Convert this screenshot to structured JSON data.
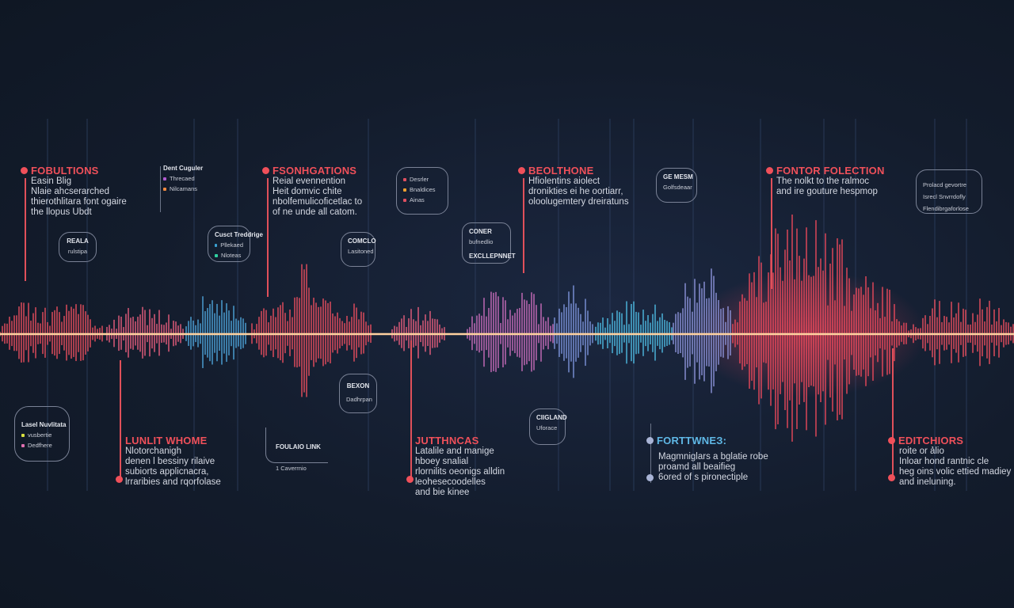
{
  "colors": {
    "background": "#131c2c",
    "accent_red": "#f0505a",
    "accent_blue": "#5fb8e6",
    "accent_purple": "#9aa0e0",
    "waveform_center": "#ffd2a0"
  },
  "top": [
    {
      "title": "FOBULTIONS",
      "lines": [
        "Easin Blig",
        "Nlaie ahcserarched",
        "thierothlitara font ogaire",
        "the llopus Ubdt"
      ]
    },
    {
      "title": "FSONHGATIONS",
      "lines": [
        "Reial evennention",
        "Heit domvic chite",
        "nbolfemulicoficetlac to",
        "of ne unde all catom."
      ]
    },
    {
      "title": "BEOLTHONE",
      "lines": [
        "Hfiolentins aiolect",
        "dronikties ei he oortiarr,",
        "oloolugemtery dreiratuns"
      ]
    },
    {
      "title": "FONTOR FOLECTION",
      "lines": [
        "The nolkt to the ralmoc",
        "and ire gouture hespmop"
      ]
    }
  ],
  "bottom": [
    {
      "title": "LUNLIT WHOME",
      "lines": [
        "Nlotorchanigh",
        "denen l bessiny rilaive",
        "subiorts applicnacra,",
        "lrraribies and rqorfolase"
      ]
    },
    {
      "title": "JUTTHNCAS",
      "lines": [
        "Latalile and manige",
        "hboey snalial",
        "rlornilits oeonigs alldin",
        "leohesecoodelles",
        "and bie kinee"
      ]
    },
    {
      "title": "FORTTWNEЗ:",
      "lines": [
        "Magmniglars a bglatie robe",
        "proamd all beaifieg",
        "6ored of s pironectiple"
      ]
    },
    {
      "title": "EDITCHIORS",
      "lines": [
        "roite or ảlio",
        "Inloar hond rantnic cle",
        "heg oins volic ettied madiey",
        "and ineluning."
      ]
    }
  ],
  "bubbles": {
    "b1": {
      "title": "Dent Cuguler",
      "items": [
        "Threcaed",
        "Nilcamans"
      ],
      "colors": [
        "#b05ad0",
        "#f08a40"
      ]
    },
    "b2": {
      "title": "REALA",
      "sub": "rulstipa"
    },
    "b3": {
      "title": "Cusct Treddrige",
      "items": [
        "Pllekaed",
        "Nloteas"
      ],
      "colors": [
        "#3aa0d0",
        "#30d0a0"
      ]
    },
    "b4": {
      "title": "COMCLO",
      "sub": "Lasitoned"
    },
    "b5": {
      "items": [
        "Desrler",
        "Bnaldices",
        "Ainas"
      ],
      "colors": [
        "#e05060",
        "#f0a030",
        "#e05060"
      ]
    },
    "b6": {
      "title": "CONER",
      "sub": "bufnedlio",
      "extra": "EXCLLEPNNET"
    },
    "b7": {
      "title": "GE MESM",
      "sub": "Golfsdeaar"
    },
    "b8": {
      "items": [
        "Prolacd gevortre",
        "Isrecl Snvrrdofly",
        "Flendibrgaforlose"
      ]
    },
    "b9": {
      "title": "Lasel Nuvlitata",
      "items": [
        "vusbertie",
        "Dedfhere"
      ],
      "colors": [
        "#d8e040",
        "#e070b0"
      ]
    },
    "b10": {
      "title": "BEXON",
      "sub": "Dadhrpan"
    },
    "b11": {
      "title": "FOULAIO LINK",
      "sub": "1 Caverrnio"
    },
    "b12": {
      "title": "CIIGLAND",
      "sub": "Uforace"
    }
  }
}
